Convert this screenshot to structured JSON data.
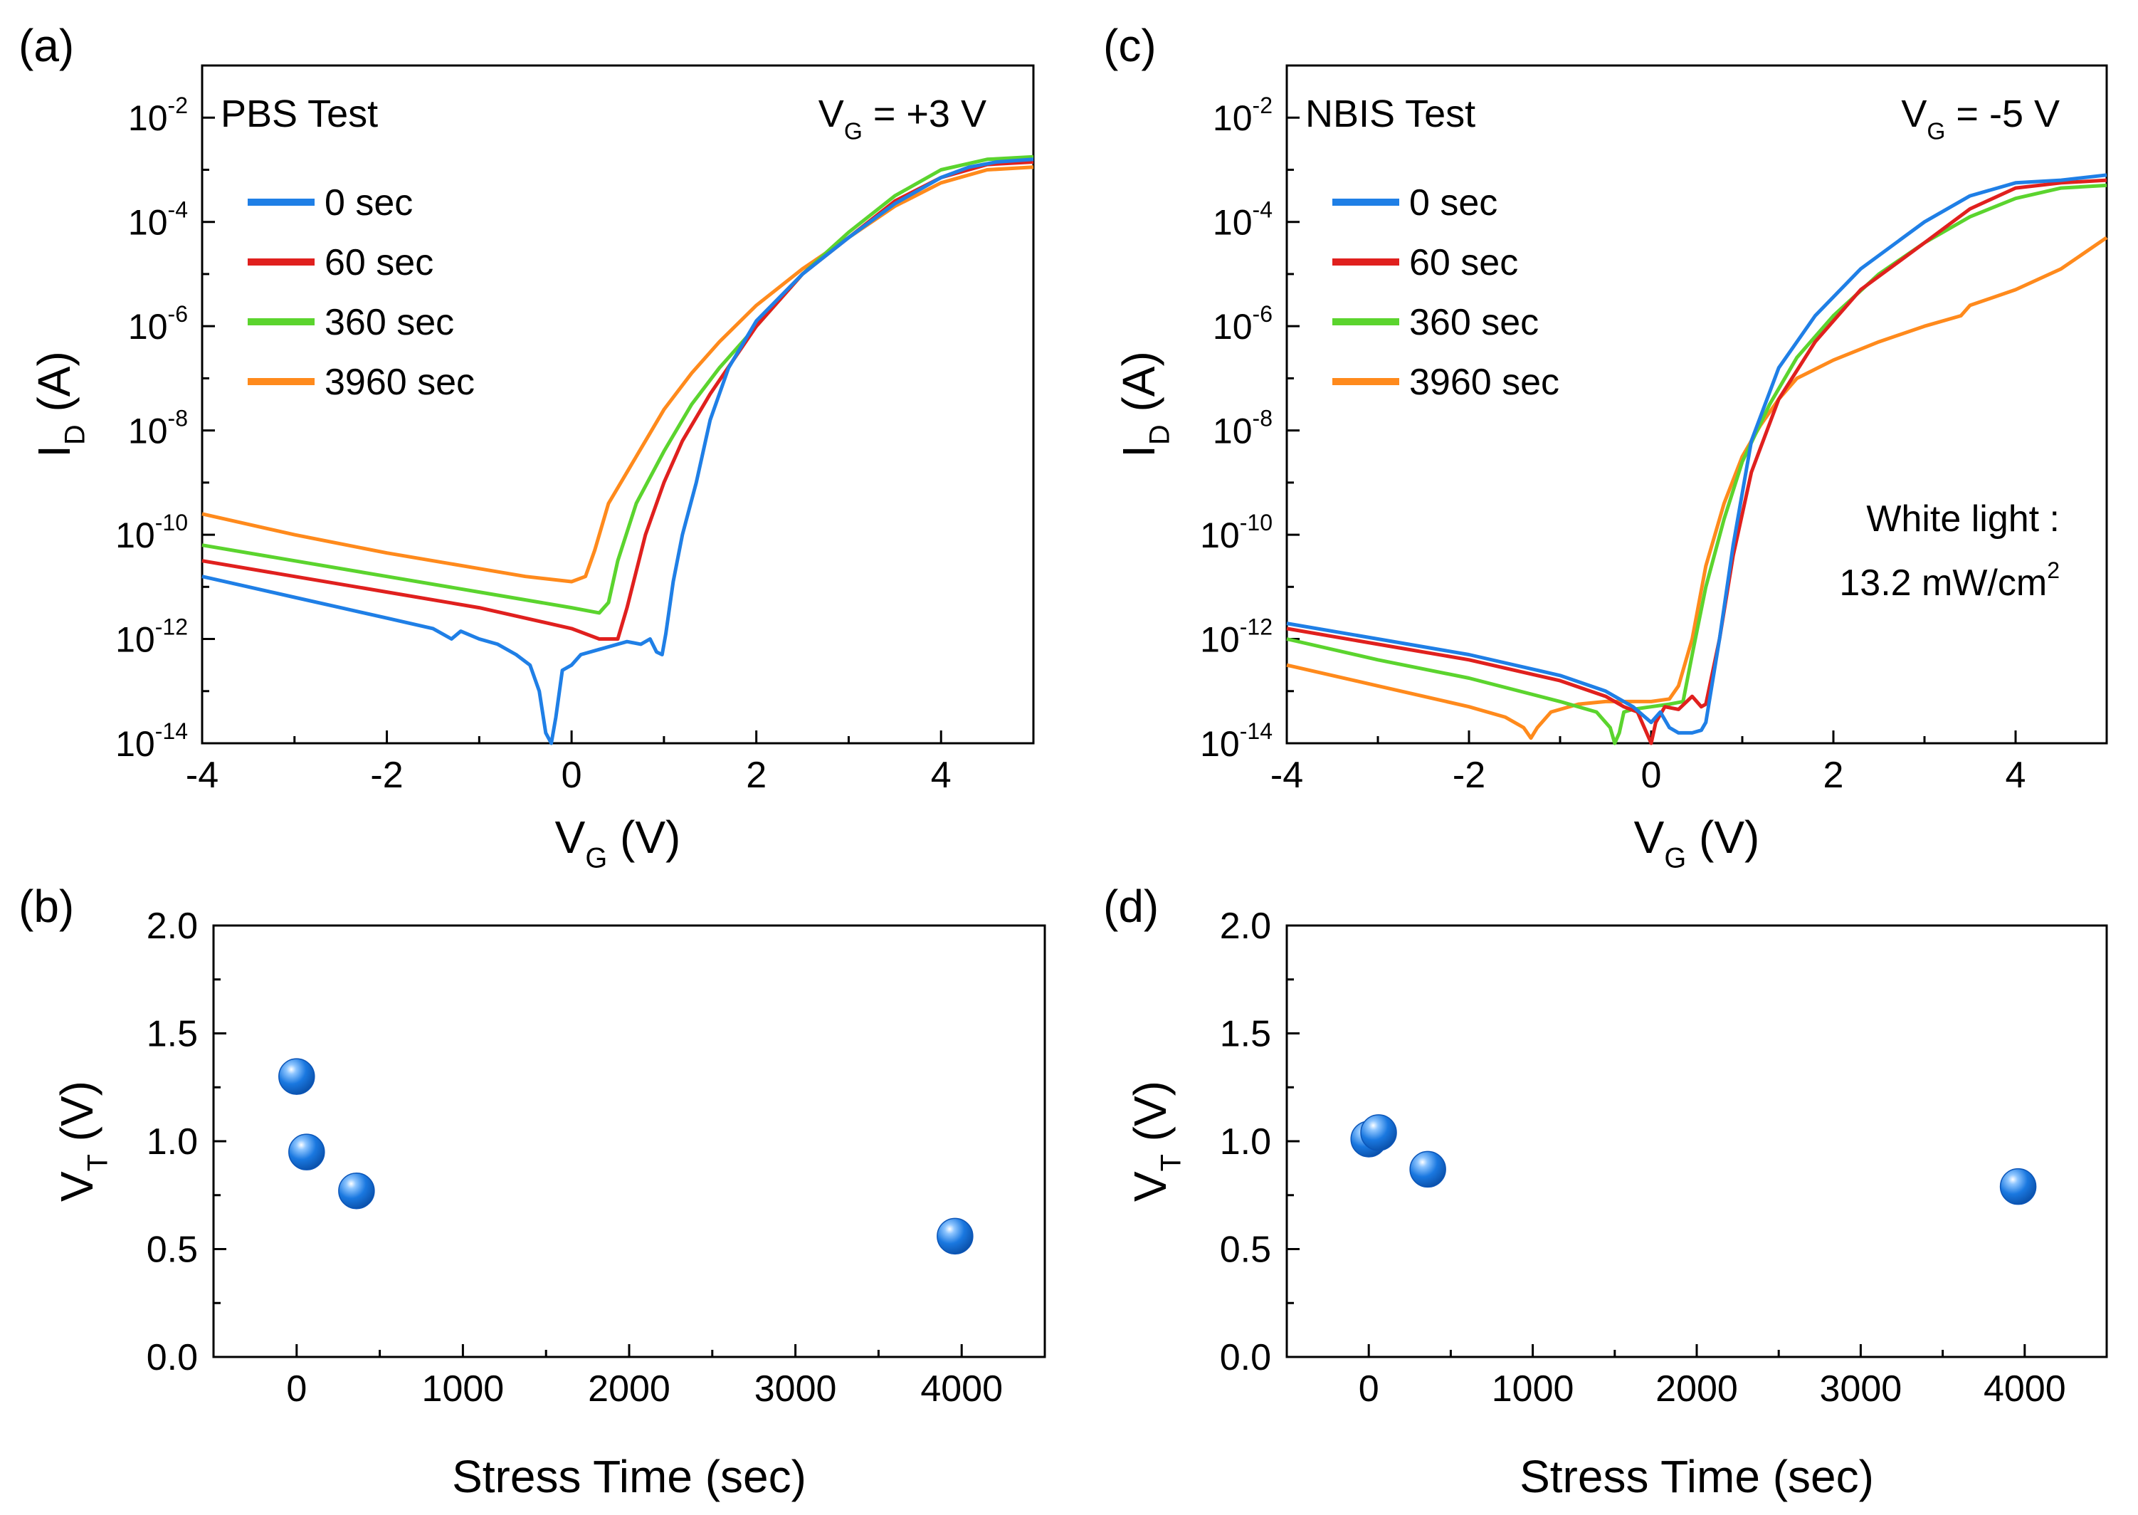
{
  "colors": {
    "blue": "#1f7fe6",
    "red": "#e0201e",
    "green": "#5bd42e",
    "orange": "#ff8a1c",
    "marker": "#1a78e0",
    "axis": "#000000"
  },
  "chart_data": [
    {
      "panel": "(a)",
      "type": "line",
      "title": "PBS Test",
      "annotation": {
        "main": "V",
        "sub": "G",
        "rest": " = +3 V"
      },
      "ylabel": {
        "main": "I",
        "sub": "D",
        "rest": " (A)"
      },
      "xlabel": {
        "main": "V",
        "sub": "G",
        "rest": " (V)"
      },
      "xlim": [
        -4,
        5
      ],
      "xticks": [
        -4,
        -2,
        0,
        2,
        4
      ],
      "xtick_labels": [
        "-4",
        "-2",
        "0",
        "2",
        "4"
      ],
      "ylim_log10": [
        -14,
        -1
      ],
      "yticks": [
        {
          "exp": -2,
          "base": "10",
          "power": "-2"
        },
        {
          "exp": -4,
          "base": "10",
          "power": "-4"
        },
        {
          "exp": -6,
          "base": "10",
          "power": "-6"
        },
        {
          "exp": -8,
          "base": "10",
          "power": "-8"
        },
        {
          "exp": -10,
          "base": "10",
          "power": "-10"
        },
        {
          "exp": -12,
          "base": "10",
          "power": "-12"
        },
        {
          "exp": -14,
          "base": "10",
          "power": "-14"
        }
      ],
      "legend_position": "top-left",
      "series": [
        {
          "name": "0 sec",
          "color": "#1f7fe6",
          "x": [
            -4.0,
            -3.5,
            -3.0,
            -2.5,
            -2.0,
            -1.5,
            -1.3,
            -1.2,
            -1.0,
            -0.8,
            -0.6,
            -0.45,
            -0.35,
            -0.28,
            -0.22,
            -0.17,
            -0.1,
            0.0,
            0.1,
            0.3,
            0.5,
            0.6,
            0.75,
            0.85,
            0.92,
            0.98,
            1.02,
            1.1,
            1.2,
            1.35,
            1.5,
            1.7,
            2.0,
            2.5,
            3.0,
            3.5,
            4.0,
            4.3,
            4.6,
            5.0
          ],
          "y": [
            -10.8,
            -11.0,
            -11.2,
            -11.4,
            -11.6,
            -11.8,
            -12.0,
            -11.85,
            -12.0,
            -12.1,
            -12.3,
            -12.5,
            -13.0,
            -13.8,
            -14.0,
            -13.5,
            -12.6,
            -12.5,
            -12.3,
            -12.2,
            -12.1,
            -12.05,
            -12.1,
            -12.0,
            -12.25,
            -12.3,
            -11.9,
            -10.9,
            -10.0,
            -9.0,
            -7.8,
            -6.8,
            -5.9,
            -5.0,
            -4.3,
            -3.65,
            -3.15,
            -2.95,
            -2.85,
            -2.8
          ]
        },
        {
          "name": "60 sec",
          "color": "#e0201e",
          "x": [
            -4.0,
            -3.0,
            -2.0,
            -1.0,
            0.0,
            0.3,
            0.5,
            0.6,
            0.8,
            1.0,
            1.2,
            1.5,
            2.0,
            2.5,
            3.0,
            3.5,
            4.0,
            4.5,
            5.0
          ],
          "y": [
            -10.5,
            -10.8,
            -11.1,
            -11.4,
            -11.8,
            -12.0,
            -12.0,
            -11.4,
            -10.0,
            -9.0,
            -8.2,
            -7.3,
            -6.0,
            -5.0,
            -4.3,
            -3.6,
            -3.15,
            -2.9,
            -2.85
          ]
        },
        {
          "name": "360 sec",
          "color": "#5bd42e",
          "x": [
            -4.0,
            -3.0,
            -2.0,
            -1.0,
            0.0,
            0.3,
            0.4,
            0.5,
            0.7,
            1.0,
            1.3,
            1.6,
            2.0,
            2.5,
            3.0,
            3.5,
            4.0,
            4.5,
            5.0
          ],
          "y": [
            -10.2,
            -10.5,
            -10.8,
            -11.1,
            -11.4,
            -11.5,
            -11.3,
            -10.5,
            -9.4,
            -8.4,
            -7.5,
            -6.8,
            -6.0,
            -5.0,
            -4.2,
            -3.5,
            -3.0,
            -2.8,
            -2.75
          ]
        },
        {
          "name": "3960 sec",
          "color": "#ff8a1c",
          "x": [
            -4.0,
            -3.0,
            -2.0,
            -1.0,
            -0.5,
            0.0,
            0.15,
            0.25,
            0.4,
            0.6,
            0.8,
            1.0,
            1.3,
            1.6,
            2.0,
            2.5,
            3.0,
            3.5,
            4.0,
            4.5,
            5.0
          ],
          "y": [
            -9.6,
            -10.0,
            -10.35,
            -10.65,
            -10.8,
            -10.9,
            -10.8,
            -10.3,
            -9.4,
            -8.8,
            -8.2,
            -7.6,
            -6.9,
            -6.3,
            -5.6,
            -4.9,
            -4.3,
            -3.7,
            -3.25,
            -3.0,
            -2.95
          ]
        }
      ]
    },
    {
      "panel": "(c)",
      "type": "line",
      "title": "NBIS Test",
      "annotation": {
        "main": "V",
        "sub": "G",
        "rest": " = -5 V"
      },
      "light_label_line1": "White light :",
      "light_label_line2": "13.2 mW/cm",
      "light_label_sup": "2",
      "ylabel": {
        "main": "I",
        "sub": "D",
        "rest": " (A)"
      },
      "xlabel": {
        "main": "V",
        "sub": "G",
        "rest": " (V)"
      },
      "xlim": [
        -4,
        5
      ],
      "xticks": [
        -4,
        -2,
        0,
        2,
        4
      ],
      "xtick_labels": [
        "-4",
        "-2",
        "0",
        "2",
        "4"
      ],
      "ylim_log10": [
        -14,
        -1
      ],
      "yticks": [
        {
          "exp": -2,
          "base": "10",
          "power": "-2"
        },
        {
          "exp": -4,
          "base": "10",
          "power": "-4"
        },
        {
          "exp": -6,
          "base": "10",
          "power": "-6"
        },
        {
          "exp": -8,
          "base": "10",
          "power": "-8"
        },
        {
          "exp": -10,
          "base": "10",
          "power": "-10"
        },
        {
          "exp": -12,
          "base": "10",
          "power": "-12"
        },
        {
          "exp": -14,
          "base": "10",
          "power": "-14"
        }
      ],
      "legend_position": "top-left",
      "series": [
        {
          "name": "0 sec",
          "color": "#1f7fe6",
          "x": [
            -4.0,
            -3.0,
            -2.0,
            -1.0,
            -0.5,
            -0.2,
            0.0,
            0.1,
            0.2,
            0.3,
            0.45,
            0.55,
            0.6,
            0.75,
            0.9,
            1.1,
            1.4,
            1.8,
            2.3,
            3.0,
            3.5,
            4.0,
            4.5,
            5.0
          ],
          "y": [
            -11.7,
            -12.0,
            -12.3,
            -12.7,
            -13.0,
            -13.3,
            -13.6,
            -13.4,
            -13.7,
            -13.8,
            -13.8,
            -13.75,
            -13.6,
            -12.0,
            -10.2,
            -8.2,
            -6.8,
            -5.8,
            -4.9,
            -4.0,
            -3.5,
            -3.25,
            -3.2,
            -3.1
          ]
        },
        {
          "name": "60 sec",
          "color": "#e0201e",
          "x": [
            -4.0,
            -3.0,
            -2.0,
            -1.0,
            -0.5,
            -0.3,
            -0.15,
            -0.05,
            0.0,
            0.05,
            0.15,
            0.3,
            0.45,
            0.55,
            0.6,
            0.75,
            0.9,
            1.1,
            1.4,
            1.8,
            2.3,
            3.0,
            3.5,
            4.0,
            4.5,
            5.0
          ],
          "y": [
            -11.8,
            -12.1,
            -12.4,
            -12.8,
            -13.1,
            -13.3,
            -13.4,
            -13.8,
            -14.0,
            -13.6,
            -13.3,
            -13.35,
            -13.1,
            -13.3,
            -13.25,
            -12.0,
            -10.4,
            -8.8,
            -7.4,
            -6.3,
            -5.3,
            -4.4,
            -3.75,
            -3.35,
            -3.25,
            -3.2
          ]
        },
        {
          "name": "360 sec",
          "color": "#5bd42e",
          "x": [
            -4.0,
            -3.0,
            -2.0,
            -1.0,
            -0.6,
            -0.45,
            -0.4,
            -0.35,
            -0.3,
            -0.2,
            0.0,
            0.2,
            0.35,
            0.45,
            0.6,
            0.8,
            1.0,
            1.3,
            1.6,
            2.0,
            2.5,
            3.0,
            3.5,
            4.0,
            4.5,
            5.0
          ],
          "y": [
            -12.0,
            -12.4,
            -12.75,
            -13.2,
            -13.4,
            -13.7,
            -14.0,
            -13.8,
            -13.4,
            -13.35,
            -13.3,
            -13.25,
            -13.2,
            -12.3,
            -11.0,
            -9.7,
            -8.6,
            -7.5,
            -6.6,
            -5.8,
            -5.0,
            -4.4,
            -3.9,
            -3.55,
            -3.35,
            -3.3
          ]
        },
        {
          "name": "3960 sec",
          "color": "#ff8a1c",
          "x": [
            -4.0,
            -3.0,
            -2.0,
            -1.6,
            -1.4,
            -1.32,
            -1.25,
            -1.1,
            -0.8,
            -0.5,
            -0.2,
            0.0,
            0.2,
            0.3,
            0.45,
            0.6,
            0.8,
            1.0,
            1.2,
            1.4,
            1.6,
            2.0,
            2.5,
            3.0,
            3.4,
            3.5,
            4.0,
            4.5,
            5.0
          ],
          "y": [
            -12.5,
            -12.9,
            -13.3,
            -13.5,
            -13.7,
            -13.9,
            -13.7,
            -13.4,
            -13.25,
            -13.2,
            -13.2,
            -13.2,
            -13.15,
            -12.9,
            -12.0,
            -10.6,
            -9.4,
            -8.5,
            -7.9,
            -7.4,
            -7.0,
            -6.65,
            -6.3,
            -6.0,
            -5.8,
            -5.6,
            -5.3,
            -4.9,
            -4.3
          ]
        }
      ]
    },
    {
      "panel": "(b)",
      "type": "scatter",
      "xlabel": "Stress Time (sec)",
      "ylabel": {
        "main": "V",
        "sub": "T",
        "rest": " (V)"
      },
      "xlim": [
        -500,
        4500
      ],
      "xticks": [
        0,
        1000,
        2000,
        3000,
        4000
      ],
      "xtick_labels": [
        "0",
        "1000",
        "2000",
        "3000",
        "4000"
      ],
      "ylim": [
        0,
        2
      ],
      "yticks": [
        0,
        0.5,
        1,
        1.5,
        2
      ],
      "ytick_labels": [
        "0.0",
        "0.5",
        "1.0",
        "1.5",
        "2.0"
      ],
      "x": [
        0,
        60,
        360,
        3960
      ],
      "y": [
        1.3,
        0.95,
        0.77,
        0.56
      ]
    },
    {
      "panel": "(d)",
      "type": "scatter",
      "xlabel": "Stress Time (sec)",
      "ylabel": {
        "main": "V",
        "sub": "T",
        "rest": " (V)"
      },
      "xlim": [
        -500,
        4500
      ],
      "xticks": [
        0,
        1000,
        2000,
        3000,
        4000
      ],
      "xtick_labels": [
        "0",
        "1000",
        "2000",
        "3000",
        "4000"
      ],
      "ylim": [
        0,
        2
      ],
      "yticks": [
        0,
        0.5,
        1,
        1.5,
        2
      ],
      "ytick_labels": [
        "0.0",
        "0.5",
        "1.0",
        "1.5",
        "2.0"
      ],
      "x": [
        0,
        60,
        360,
        3960
      ],
      "y": [
        1.01,
        1.04,
        0.87,
        0.79
      ]
    }
  ]
}
